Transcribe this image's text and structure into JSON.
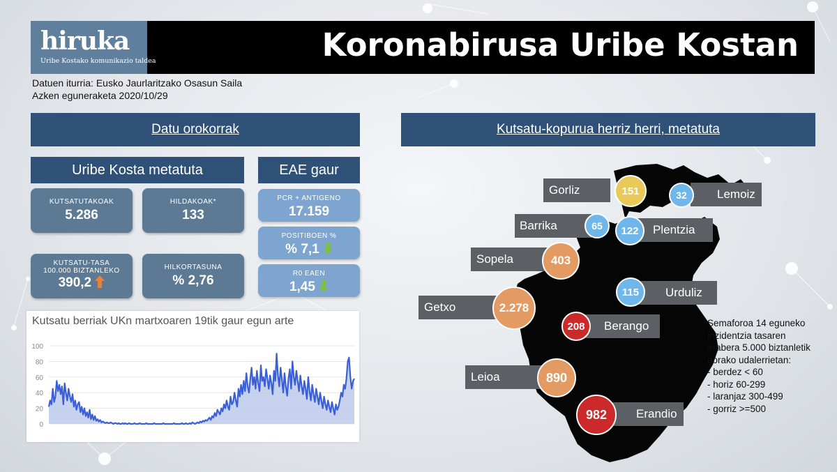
{
  "header": {
    "logo_name": "hiruka",
    "logo_tagline": "Uribe Kostako komunikazio taldea",
    "title": "Koronabirusa Uribe Kostan"
  },
  "source": {
    "line1": "Datuen iturria: Eusko Jaurlaritzako Osasun Saila",
    "line2": "Azken eguneraketa 2020/10/29"
  },
  "left_section": {
    "banner": "Datu orokorrak",
    "uribe_title": "Uribe Kosta metatuta",
    "eae_title": "EAE gaur",
    "uribe_cards": [
      {
        "label": "KUTSATUTAKOAK",
        "value": "5.286"
      },
      {
        "label": "HILDAKOAK*",
        "value": "133"
      },
      {
        "label_line1": "KUTSATU-TASA",
        "label_line2": "100.000 BIZTANLEKO",
        "value": "390,2",
        "trend": "up",
        "trend_color": "#e8823a"
      },
      {
        "label": "HILKORTASUNA",
        "value": "% 2,76"
      }
    ],
    "eae_cards": [
      {
        "label": "PCR + ANTIGENO",
        "value": "17.159"
      },
      {
        "label": "POSITIBOEN %",
        "value": "% 7,1",
        "trend": "down",
        "trend_color": "#7bc043"
      },
      {
        "label": "R0 EAEN",
        "value": "1,45",
        "trend": "down",
        "trend_color": "#7bc043"
      }
    ]
  },
  "right_section": {
    "banner": "Kutsatu-kopurua herriz herri, metatuta"
  },
  "colors": {
    "banner": "#2f5177",
    "card": "#5d7a94",
    "card_eae": "#7ea5d0",
    "green": "#6fb7ea",
    "yellow": "#e9c95a",
    "orange": "#e49a63",
    "red": "#cc2a2a",
    "label_bg": "#5c5f64",
    "line": "#3b5fd6"
  },
  "towns": [
    {
      "name": "Gorliz",
      "value": "151",
      "color": "#e9c95a"
    },
    {
      "name": "Lemoiz",
      "value": "32",
      "color": "#6fb7ea"
    },
    {
      "name": "Barrika",
      "value": "65",
      "color": "#6fb7ea"
    },
    {
      "name": "Plentzia",
      "value": "122",
      "color": "#6fb7ea"
    },
    {
      "name": "Sopela",
      "value": "403",
      "color": "#e49a63"
    },
    {
      "name": "Urduliz",
      "value": "115",
      "color": "#6fb7ea"
    },
    {
      "name": "Getxo",
      "value": "2.278",
      "color": "#e49a63"
    },
    {
      "name": "Berango",
      "value": "208",
      "color": "#cc2a2a"
    },
    {
      "name": "Leioa",
      "value": "890",
      "color": "#e49a63"
    },
    {
      "name": "Erandio",
      "value": "982",
      "color": "#cc2a2a"
    }
  ],
  "legend": {
    "lines": [
      "Semaforoa 14 eguneko",
      "inzidentzia tasaren",
      "arabera 5.000 biztanletik",
      "gorako udalerrietan:",
      "- berdez < 60",
      "- horiz 60-299",
      "- laranjaz 300-499",
      "- gorriz >=500"
    ]
  },
  "chart_data": {
    "type": "area",
    "title": "Kutsatu berriak UKn martxoaren 19tik gaur egun arte",
    "xlabel": "",
    "ylabel": "",
    "ylim": [
      0,
      100
    ],
    "yticks": [
      0,
      20,
      40,
      60,
      80,
      100
    ],
    "grid": true,
    "legend": "none",
    "series": [
      {
        "values": [
          22,
          30,
          25,
          45,
          28,
          35,
          55,
          42,
          50,
          38,
          48,
          25,
          52,
          40,
          30,
          45,
          35,
          28,
          38,
          22,
          30,
          18,
          25,
          28,
          15,
          22,
          12,
          20,
          10,
          15,
          8,
          18,
          6,
          12,
          5,
          10,
          4,
          6,
          3,
          5,
          2,
          3,
          2,
          1,
          2,
          1,
          1,
          2,
          1,
          0,
          1,
          1,
          0,
          1,
          0,
          0,
          1,
          0,
          1,
          0,
          0,
          1,
          0,
          0,
          0,
          1,
          0,
          0,
          0,
          1,
          0,
          0,
          0,
          0,
          1,
          0,
          0,
          0,
          0,
          0,
          1,
          0,
          0,
          0,
          0,
          0,
          0,
          1,
          0,
          0,
          0,
          0,
          0,
          0,
          0,
          1,
          0,
          0,
          0,
          0,
          0,
          1,
          0,
          0,
          1,
          0,
          0,
          1,
          0,
          2,
          1,
          0,
          1,
          2,
          1,
          3,
          2,
          4,
          3,
          5,
          4,
          6,
          8,
          5,
          10,
          8,
          14,
          10,
          18,
          15,
          12,
          20,
          16,
          25,
          20,
          30,
          22,
          18,
          35,
          25,
          28,
          40,
          30,
          22,
          45,
          35,
          50,
          38,
          55,
          42,
          65,
          48,
          40,
          58,
          72,
          50,
          60,
          45,
          68,
          52,
          42,
          75,
          55,
          60,
          48,
          70,
          58,
          45,
          62,
          52,
          38,
          68,
          55,
          90,
          62,
          48,
          72,
          56,
          40,
          65,
          48,
          36,
          58,
          70,
          45,
          80,
          60,
          50,
          68,
          55,
          42,
          62,
          48,
          38,
          55,
          45,
          32,
          60,
          42,
          30,
          50,
          38,
          28,
          45,
          35,
          25,
          40,
          30,
          20,
          35,
          25,
          18,
          30,
          22,
          15,
          28,
          20,
          12,
          25,
          18,
          22,
          30,
          40,
          35,
          50,
          45,
          58,
          80,
          85,
          60,
          45,
          55,
          58
        ]
      }
    ]
  }
}
